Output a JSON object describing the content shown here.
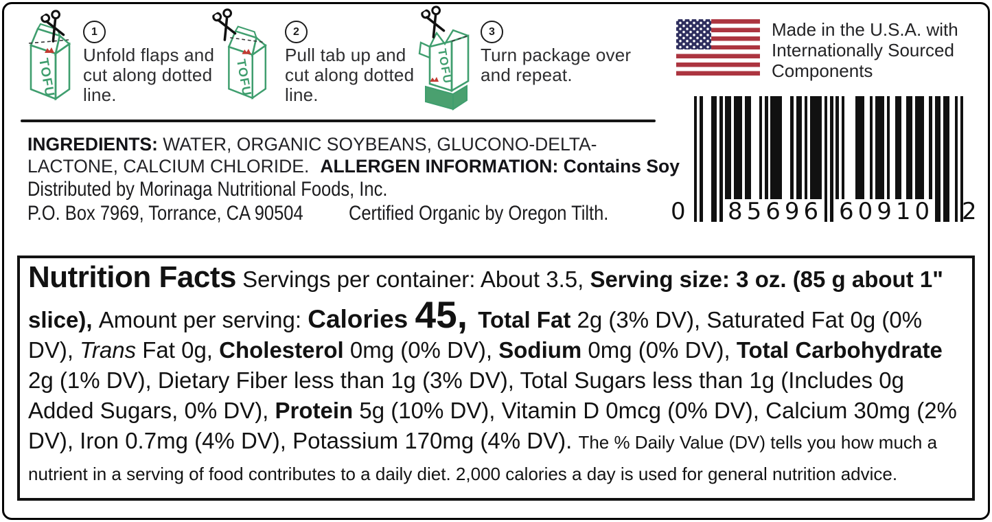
{
  "instructions": {
    "carton_label": "TOFU",
    "steps": [
      {
        "number": "1",
        "text": "Unfold flaps and cut along dotted line."
      },
      {
        "number": "2",
        "text": "Pull tab up and cut along dotted line."
      },
      {
        "number": "3",
        "text": "Turn package over and repeat."
      }
    ]
  },
  "origin": {
    "text": "Made in the U.S.A. with Internationally Sourced Components"
  },
  "barcode": {
    "digits": "085696609102",
    "display_first": "0",
    "display_left": "85696",
    "display_right": "60910",
    "display_last": "2"
  },
  "ingredients": {
    "label": "INGREDIENTS:",
    "list": " WATER, ORGANIC SOYBEANS, GLUCONO-DELTA-LACTONE, CALCIUM CHLORIDE.",
    "allergen_label": "ALLERGEN INFORMATION:",
    "allergen_value": " Contains Soy"
  },
  "distributor": {
    "line1": "Distributed by Morinaga Nutritional Foods, Inc.",
    "line2": "P.O. Box 7969, Torrance, CA 90504",
    "certification": "Certified Organic by Oregon Tilth."
  },
  "nutrition": {
    "title": "Nutrition Facts",
    "servings": " Servings per container: About 3.5, ",
    "serving_size": "Serving size: 3 oz. (85 g about 1\" slice), ",
    "amount_label": "Amount per serving: ",
    "calories_label": "Calories ",
    "calories_value": "45, ",
    "total_fat_label": "Total Fat",
    "total_fat_rest": " 2g (3% DV), Saturated Fat 0g (0% DV), ",
    "trans_italic": "Trans",
    "trans_rest": " Fat 0g, ",
    "cholesterol_label": "Cholesterol",
    "cholesterol_rest": " 0mg (0% DV), ",
    "sodium_label": "Sodium",
    "sodium_rest": " 0mg (0% DV), ",
    "carb_label": "Total Carbohydrate",
    "carb_rest": " 2g (1% DV), Dietary Fiber less than 1g (3% DV), Total Sugars less than 1g (Includes 0g Added Sugars, 0% DV), ",
    "protein_label": "Protein",
    "protein_rest": " 5g (10% DV), Vitamin D 0mcg (0% DV), Calcium 30mg (2% DV), Iron 0.7mg (4% DV), Potassium 170mg (4% DV). ",
    "footnote": "The % Daily Value (DV) tells you how much a nutrient in a serving of food contributes to a daily diet. 2,000 calories a day is used for general nutrition advice."
  }
}
